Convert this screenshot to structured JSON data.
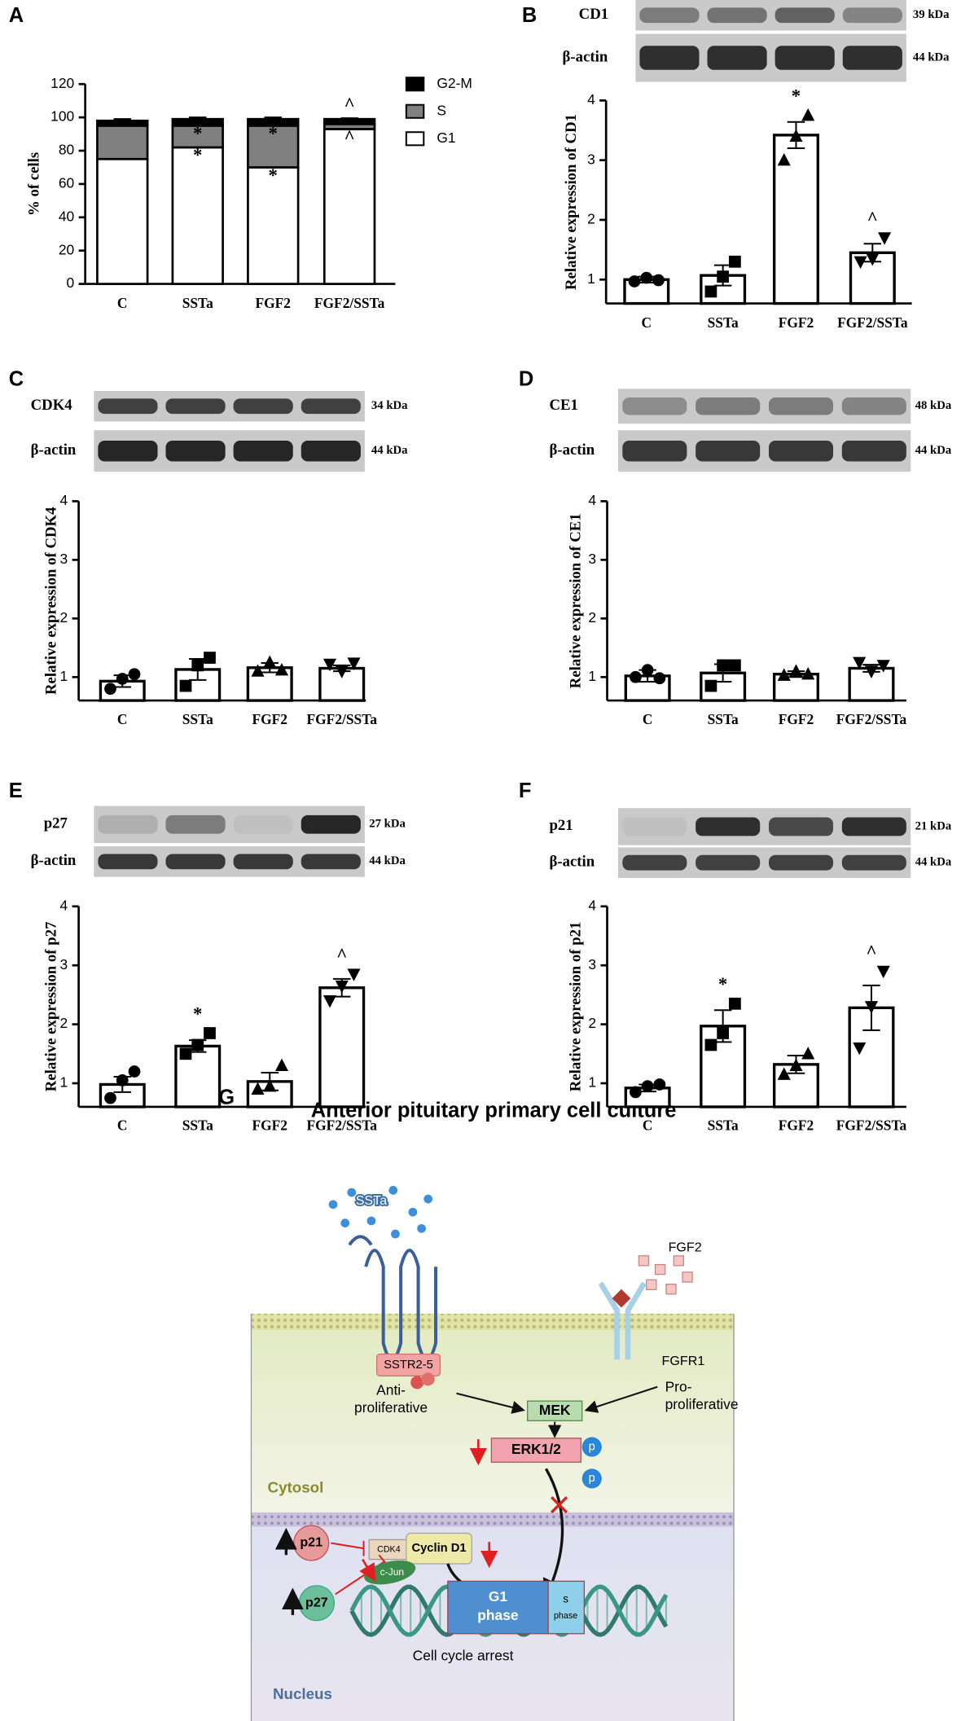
{
  "chart_data": [
    {
      "panel": "A",
      "type": "stacked_bar",
      "ylabel": "% of cells",
      "categories": [
        "C",
        "SSTa",
        "FGF2",
        "FGF2/SSTa"
      ],
      "series": [
        {
          "name": "G1",
          "color": "#ffffff",
          "values": [
            75,
            82,
            70,
            93
          ],
          "errors": [
            1,
            2,
            3,
            1
          ],
          "markers": [
            null,
            "*",
            "*",
            "^"
          ]
        },
        {
          "name": "S",
          "color": "#808080",
          "values": [
            20,
            13,
            25,
            3
          ],
          "errors": [
            1,
            1.5,
            1,
            1
          ],
          "markers": [
            null,
            "*",
            "*",
            null
          ]
        },
        {
          "name": "G2-M",
          "color": "#000000",
          "values": [
            3,
            4,
            4,
            3
          ],
          "errors": [
            1,
            1,
            1,
            0.5
          ],
          "markers": [
            null,
            null,
            null,
            "^"
          ]
        }
      ],
      "ylim": [
        0,
        120
      ],
      "yticks": [
        0,
        20,
        40,
        60,
        80,
        100,
        120
      ]
    },
    {
      "panel": "B",
      "type": "bar",
      "ylabel": "Relative expression of CD1",
      "blots": [
        {
          "label": "CD1",
          "size": "39 kDa"
        },
        {
          "label": "β-actin",
          "size": "44 kDa"
        }
      ],
      "categories": [
        "C",
        "SSTa",
        "FGF2",
        "FGF2/SSTa"
      ],
      "values": [
        1.0,
        1.07,
        3.42,
        1.45
      ],
      "errors": [
        0.05,
        0.17,
        0.22,
        0.15
      ],
      "points": [
        [
          0.97,
          1.03,
          0.99
        ],
        [
          0.8,
          1.05,
          1.3
        ],
        [
          3.0,
          3.4,
          3.75
        ],
        [
          1.3,
          1.35,
          1.7
        ]
      ],
      "point_shapes": [
        "circle",
        "square",
        "triangle-up",
        "triangle-down"
      ],
      "markers": [
        null,
        null,
        "*",
        "^"
      ],
      "ylim": [
        0.6,
        4
      ],
      "yticks": [
        1,
        2,
        3,
        4
      ]
    },
    {
      "panel": "C",
      "type": "bar",
      "ylabel": "Relative expression of CDK4",
      "blots": [
        {
          "label": "CDK4",
          "size": "34 kDa"
        },
        {
          "label": "β-actin",
          "size": "44 kDa"
        }
      ],
      "categories": [
        "C",
        "SSTa",
        "FGF2",
        "FGF2/SSTa"
      ],
      "values": [
        0.93,
        1.13,
        1.16,
        1.15
      ],
      "errors": [
        0.1,
        0.18,
        0.08,
        0.05
      ],
      "points": [
        [
          0.8,
          0.97,
          1.05
        ],
        [
          0.85,
          1.2,
          1.33
        ],
        [
          1.1,
          1.25,
          1.12
        ],
        [
          1.22,
          1.1,
          1.24
        ]
      ],
      "point_shapes": [
        "circle",
        "square",
        "triangle-up",
        "triangle-down"
      ],
      "markers": [
        null,
        null,
        null,
        null
      ],
      "ylim": [
        0.6,
        4
      ],
      "yticks": [
        1,
        2,
        3,
        4
      ]
    },
    {
      "panel": "D",
      "type": "bar",
      "ylabel": "Relative expression of CE1",
      "blots": [
        {
          "label": "CE1",
          "size": "48 kDa"
        },
        {
          "label": "β-actin",
          "size": "44 kDa"
        }
      ],
      "categories": [
        "C",
        "SSTa",
        "FGF2",
        "FGF2/SSTa"
      ],
      "values": [
        1.02,
        1.07,
        1.05,
        1.15
      ],
      "errors": [
        0.1,
        0.15,
        0.05,
        0.06
      ],
      "points": [
        [
          1.0,
          1.12,
          0.98
        ],
        [
          0.85,
          1.2,
          1.2
        ],
        [
          1.03,
          1.1,
          1.05
        ],
        [
          1.25,
          1.1,
          1.2
        ]
      ],
      "point_shapes": [
        "circle",
        "square",
        "triangle-up",
        "triangle-down"
      ],
      "markers": [
        null,
        null,
        null,
        null
      ],
      "ylim": [
        0.6,
        4
      ],
      "yticks": [
        1,
        2,
        3,
        4
      ]
    },
    {
      "panel": "E",
      "type": "bar",
      "ylabel": "Relative expression of p27",
      "blots": [
        {
          "label": "p27",
          "size": "27 kDa"
        },
        {
          "label": "β-actin",
          "size": "44 kDa"
        }
      ],
      "categories": [
        "C",
        "SSTa",
        "FGF2",
        "FGF2/SSTa"
      ],
      "values": [
        0.98,
        1.63,
        1.03,
        2.62
      ],
      "errors": [
        0.13,
        0.1,
        0.15,
        0.15
      ],
      "points": [
        [
          0.75,
          1.05,
          1.2
        ],
        [
          1.5,
          1.65,
          1.85
        ],
        [
          0.9,
          0.95,
          1.3
        ],
        [
          2.4,
          2.65,
          2.85
        ]
      ],
      "point_shapes": [
        "circle",
        "square",
        "triangle-up",
        "triangle-down"
      ],
      "markers": [
        null,
        "*",
        null,
        "^"
      ],
      "ylim": [
        0.6,
        4
      ],
      "yticks": [
        1,
        2,
        3,
        4
      ]
    },
    {
      "panel": "F",
      "type": "bar",
      "ylabel": "Relative expression of p21",
      "blots": [
        {
          "label": "p21",
          "size": "21 kDa"
        },
        {
          "label": "β-actin",
          "size": "44 kDa"
        }
      ],
      "categories": [
        "C",
        "SSTa",
        "FGF2",
        "FGF2/SSTa"
      ],
      "values": [
        0.92,
        1.97,
        1.32,
        2.28
      ],
      "errors": [
        0.06,
        0.27,
        0.15,
        0.38
      ],
      "points": [
        [
          0.85,
          0.95,
          0.98
        ],
        [
          1.65,
          1.85,
          2.35
        ],
        [
          1.15,
          1.3,
          1.5
        ],
        [
          1.6,
          2.3,
          2.9
        ]
      ],
      "point_shapes": [
        "circle",
        "square",
        "triangle-up",
        "triangle-down"
      ],
      "markers": [
        null,
        "*",
        null,
        "^"
      ],
      "ylim": [
        0.6,
        4
      ],
      "yticks": [
        1,
        2,
        3,
        4
      ]
    }
  ],
  "diagram": {
    "panel": "G",
    "title": "Anterior pituitary primary cell culture",
    "ssta": "SSTa",
    "fgf2": "FGF2",
    "sstr": "SSTR2-5",
    "fgfr": "FGFR1",
    "anti": [
      "Anti-",
      "proliferative"
    ],
    "pro": [
      "Pro-",
      "proliferative"
    ],
    "mek": "MEK",
    "erk": "ERK1/2",
    "phospho": [
      "p",
      "p"
    ],
    "cytosol": "Cytosol",
    "p21": "p21",
    "p27": "p27",
    "cdk4": "CDK4",
    "cyclin": "Cyclin D1",
    "cjun": "c-Jun",
    "g1": [
      "G1",
      "phase"
    ],
    "s": [
      "s",
      "phase"
    ],
    "arrest": "Cell cycle arrest",
    "nucleus": "Nucleus"
  }
}
